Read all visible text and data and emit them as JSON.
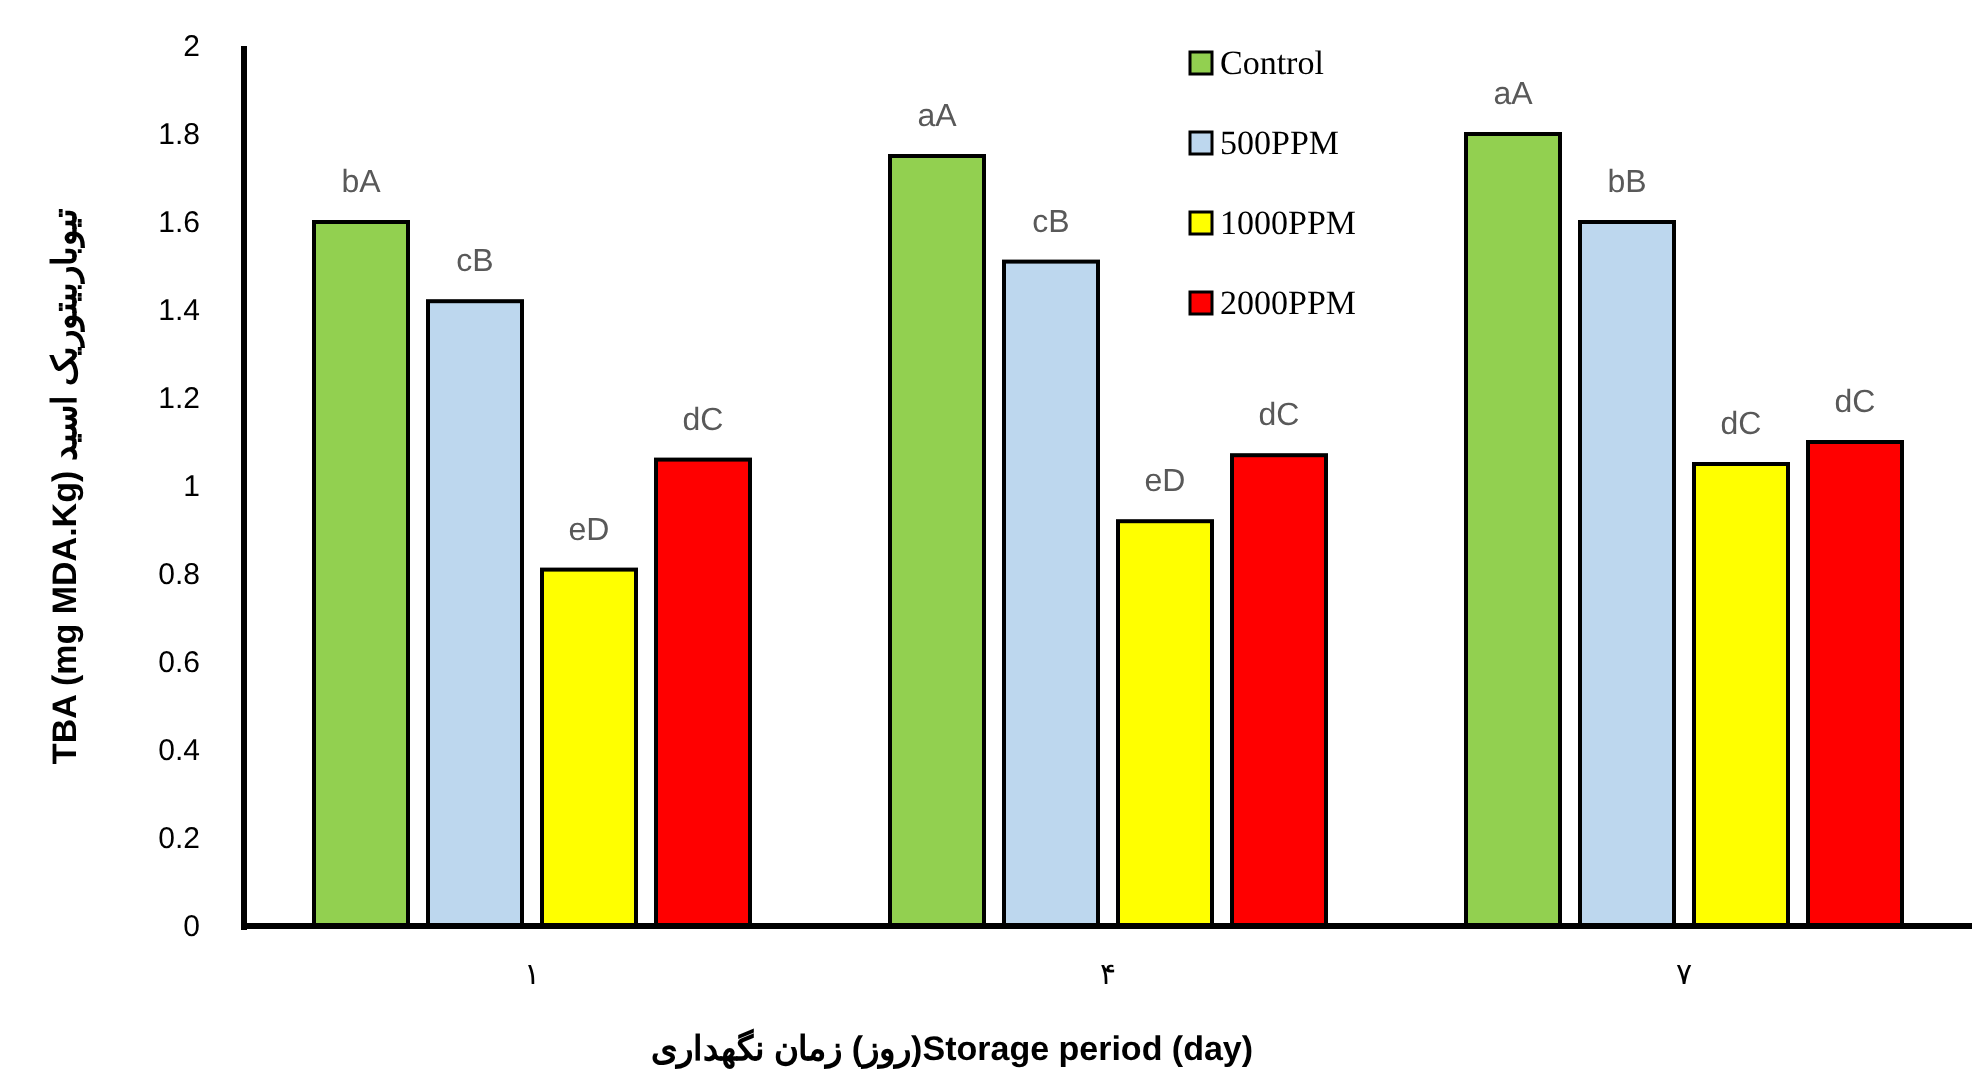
{
  "chart_data": {
    "type": "bar",
    "xlabel": "Storage period (day)(روز) زمان نگهداری",
    "ylabel": "TBA (mg MDA.Kg) تیوباربیتوریک اسید",
    "categories": [
      "۱",
      "۴",
      "۷"
    ],
    "ylim": [
      0,
      2
    ],
    "yticks": [
      0,
      {
        "value": 0.2,
        "label": "0.2"
      },
      {
        "value": 0.4,
        "label": "0.4"
      },
      {
        "value": 0.6,
        "label": "0.6"
      },
      {
        "value": 0.8,
        "label": "0.8"
      },
      1,
      {
        "value": 1.2,
        "label": "1.2"
      },
      {
        "value": 1.4,
        "label": "1.4"
      },
      {
        "value": 1.6,
        "label": "1.6"
      },
      {
        "value": 1.8,
        "label": "1.8"
      },
      2
    ],
    "grid": false,
    "legend": "top",
    "series": [
      {
        "name": "Control",
        "color": "#92d050",
        "values": [
          1.6,
          1.75,
          1.8
        ],
        "value_labels": [
          "bA",
          "aA",
          "aA"
        ]
      },
      {
        "name": "500PPM",
        "color": "#bdd7ee",
        "values": [
          1.42,
          1.51,
          1.6
        ],
        "value_labels": [
          "cB",
          "cB",
          "bB"
        ]
      },
      {
        "name": "1000PPM",
        "color": "#ffff00",
        "values": [
          0.81,
          0.92,
          1.05
        ],
        "value_labels": [
          "eD",
          "eD",
          "dC"
        ]
      },
      {
        "name": "2000PPM",
        "color": "#ff0000",
        "values": [
          1.06,
          1.07,
          1.1
        ],
        "value_labels": [
          "dC",
          "dC",
          "dC"
        ]
      }
    ]
  }
}
